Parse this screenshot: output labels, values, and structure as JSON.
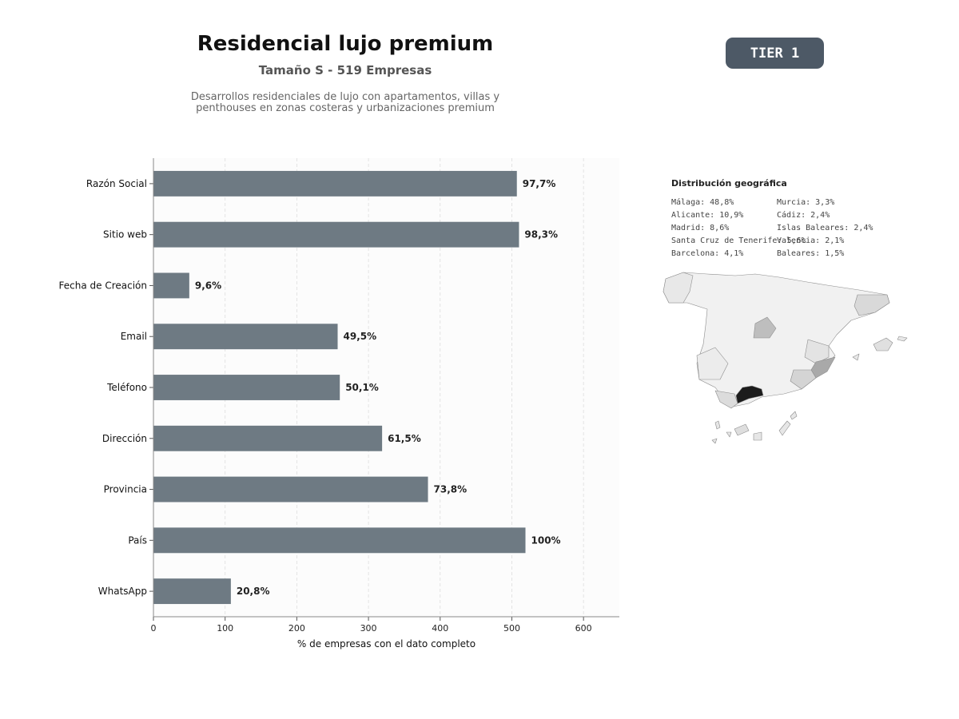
{
  "header": {
    "title": "Residencial lujo premium",
    "subtitle": "Tamaño S - 519 Empresas",
    "description_line1": "Desarrollos residenciales de lujo con apartamentos, villas y",
    "description_line2": "penthouses en zonas costeras y urbanizaciones premium",
    "tier_label": "TIER 1"
  },
  "chart_data": {
    "type": "bar",
    "orientation": "horizontal",
    "categories": [
      "Razón Social",
      "Sitio web",
      "Fecha de Creación",
      "Email",
      "Teléfono",
      "Dirección",
      "Provincia",
      "País",
      "WhatsApp"
    ],
    "values": [
      507,
      510,
      50,
      257,
      260,
      319,
      383,
      519,
      108
    ],
    "data_labels": [
      "97,7%",
      "98,3%",
      "9,6%",
      "49,5%",
      "50,1%",
      "61,5%",
      "73,8%",
      "100%",
      "20,8%"
    ],
    "xlabel": "% de empresas con el dato completo",
    "ylabel": "",
    "xlim": [
      0,
      650
    ],
    "xticks": [
      0,
      100,
      200,
      300,
      400,
      500,
      600
    ],
    "grid": "vertical-dashed",
    "bar_color": "#6e7a83"
  },
  "geo": {
    "title": "Distribución geográfica",
    "col1": [
      "Málaga: 48,8%",
      "Alicante: 10,9%",
      "Madrid: 8,6%",
      "Santa Cruz de Tenerife: 5,6%",
      "Barcelona: 4,1%"
    ],
    "col2": [
      "Murcia: 3,3%",
      "Cádiz: 2,4%",
      "Islas Baleares: 2,4%",
      "Valencia: 2,1%",
      "Baleares: 1,5%"
    ]
  }
}
